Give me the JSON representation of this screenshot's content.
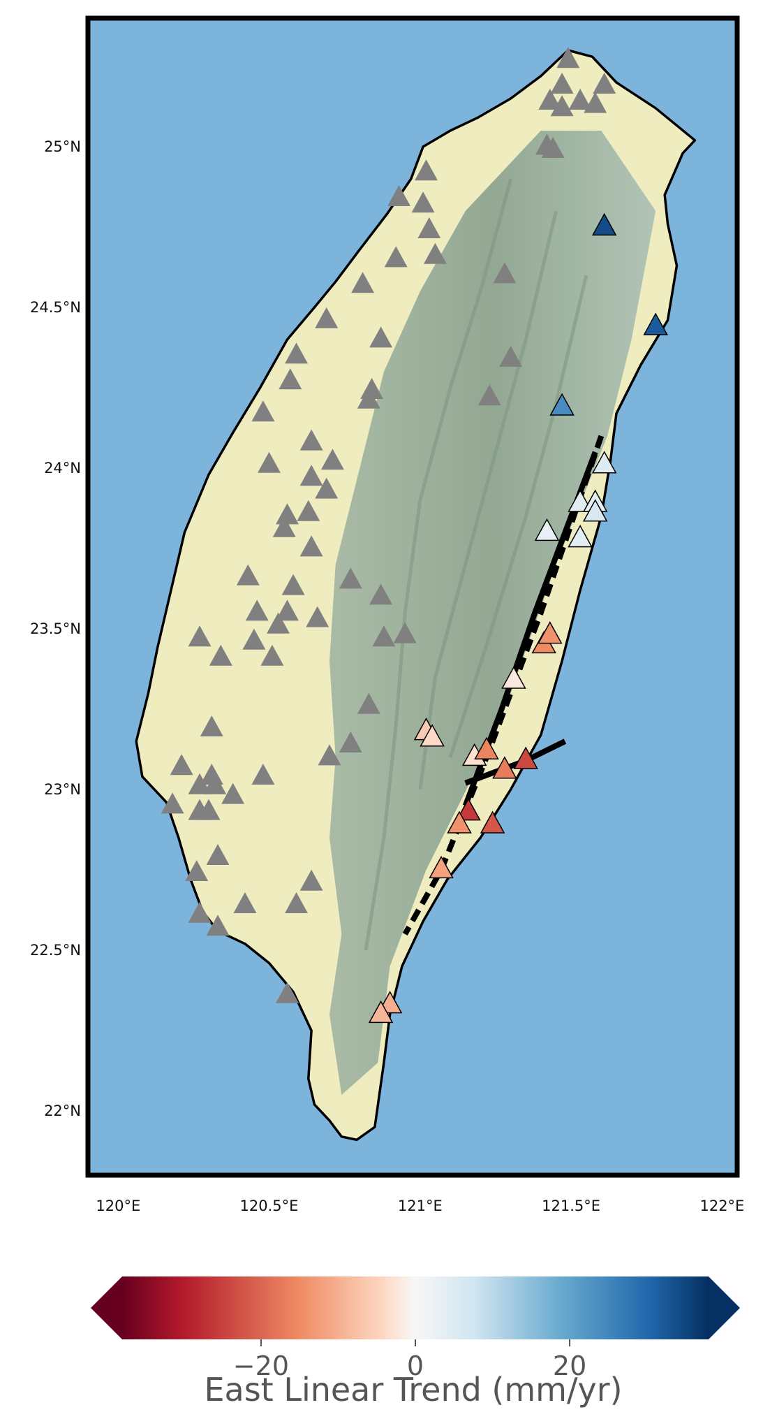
{
  "map": {
    "region": "Taiwan",
    "extent": {
      "lon": [
        119.9,
        122.05
      ],
      "lat": [
        21.8,
        25.4
      ]
    },
    "lon_ticks": [
      {
        "value": 120.0,
        "label": "120°E"
      },
      {
        "value": 120.5,
        "label": "120.5°E"
      },
      {
        "value": 121.0,
        "label": "121°E"
      },
      {
        "value": 121.5,
        "label": "121.5°E"
      },
      {
        "value": 122.0,
        "label": "122°E"
      }
    ],
    "lat_ticks": [
      {
        "value": 22.0,
        "label": "22°N"
      },
      {
        "value": 22.5,
        "label": "22.5°N"
      },
      {
        "value": 23.0,
        "label": "23°N"
      },
      {
        "value": 23.5,
        "label": "23.5°N"
      },
      {
        "value": 24.0,
        "label": "24°N"
      },
      {
        "value": 24.5,
        "label": "24.5°N"
      },
      {
        "value": 25.0,
        "label": "25°N"
      }
    ],
    "colors": {
      "sea": "#7db4dc",
      "lowland": "#efecc0",
      "mountain": "#a9bba6",
      "ridge": "#7e9482",
      "coast": "#000000",
      "no_data_station": "#808080"
    },
    "coastline": [
      [
        121.49,
        25.3
      ],
      [
        121.57,
        25.28
      ],
      [
        121.65,
        25.2
      ],
      [
        121.78,
        25.12
      ],
      [
        121.91,
        25.02
      ],
      [
        121.87,
        24.98
      ],
      [
        121.81,
        24.85
      ],
      [
        121.82,
        24.76
      ],
      [
        121.85,
        24.63
      ],
      [
        121.82,
        24.46
      ],
      [
        121.73,
        24.32
      ],
      [
        121.65,
        24.17
      ],
      [
        121.63,
        24.02
      ],
      [
        121.6,
        23.85
      ],
      [
        121.53,
        23.62
      ],
      [
        121.47,
        23.4
      ],
      [
        121.4,
        23.17
      ],
      [
        121.3,
        23.0
      ],
      [
        121.2,
        22.85
      ],
      [
        121.09,
        22.72
      ],
      [
        121.01,
        22.59
      ],
      [
        120.94,
        22.45
      ],
      [
        120.9,
        22.3
      ],
      [
        120.88,
        22.15
      ],
      [
        120.85,
        21.95
      ],
      [
        120.79,
        21.91
      ],
      [
        120.74,
        21.92
      ],
      [
        120.7,
        21.97
      ],
      [
        120.65,
        22.02
      ],
      [
        120.63,
        22.1
      ],
      [
        120.64,
        22.25
      ],
      [
        120.58,
        22.37
      ],
      [
        120.5,
        22.46
      ],
      [
        120.42,
        22.52
      ],
      [
        120.33,
        22.56
      ],
      [
        120.28,
        22.62
      ],
      [
        120.24,
        22.72
      ],
      [
        120.2,
        22.85
      ],
      [
        120.16,
        22.96
      ],
      [
        120.08,
        23.04
      ],
      [
        120.06,
        23.15
      ],
      [
        120.1,
        23.3
      ],
      [
        120.13,
        23.44
      ],
      [
        120.17,
        23.6
      ],
      [
        120.22,
        23.8
      ],
      [
        120.3,
        23.98
      ],
      [
        120.38,
        24.11
      ],
      [
        120.47,
        24.25
      ],
      [
        120.56,
        24.4
      ],
      [
        120.65,
        24.5
      ],
      [
        120.72,
        24.58
      ],
      [
        120.8,
        24.68
      ],
      [
        120.89,
        24.79
      ],
      [
        120.97,
        24.9
      ],
      [
        121.01,
        25.0
      ],
      [
        121.1,
        25.05
      ],
      [
        121.19,
        25.09
      ],
      [
        121.3,
        25.15
      ],
      [
        121.4,
        25.22
      ],
      [
        121.49,
        25.3
      ]
    ],
    "faults": [
      {
        "style": "dashed",
        "points": [
          [
            121.6,
            24.1
          ],
          [
            121.4,
            23.55
          ],
          [
            121.22,
            23.1
          ],
          [
            121.07,
            22.75
          ],
          [
            120.95,
            22.55
          ]
        ]
      },
      {
        "style": "solid",
        "points": [
          [
            121.58,
            24.05
          ],
          [
            121.38,
            23.55
          ],
          [
            121.27,
            23.25
          ],
          [
            121.15,
            22.95
          ]
        ]
      },
      {
        "style": "solid",
        "points": [
          [
            121.15,
            23.02
          ],
          [
            121.35,
            23.09
          ],
          [
            121.48,
            23.15
          ]
        ]
      }
    ],
    "stations_no_data": [
      [
        121.49,
        25.27
      ],
      [
        121.47,
        25.19
      ],
      [
        121.61,
        25.19
      ],
      [
        121.43,
        25.14
      ],
      [
        121.53,
        25.14
      ],
      [
        121.58,
        25.13
      ],
      [
        121.47,
        25.12
      ],
      [
        121.42,
        25.0
      ],
      [
        121.44,
        24.99
      ],
      [
        121.02,
        24.92
      ],
      [
        120.93,
        24.84
      ],
      [
        121.01,
        24.82
      ],
      [
        121.03,
        24.74
      ],
      [
        121.05,
        24.66
      ],
      [
        120.92,
        24.65
      ],
      [
        121.28,
        24.6
      ],
      [
        120.81,
        24.57
      ],
      [
        120.69,
        24.46
      ],
      [
        120.87,
        24.4
      ],
      [
        120.59,
        24.35
      ],
      [
        121.3,
        24.34
      ],
      [
        120.57,
        24.27
      ],
      [
        120.84,
        24.24
      ],
      [
        120.83,
        24.21
      ],
      [
        121.23,
        24.22
      ],
      [
        120.48,
        24.17
      ],
      [
        120.64,
        24.08
      ],
      [
        120.5,
        24.01
      ],
      [
        120.71,
        24.02
      ],
      [
        120.64,
        23.97
      ],
      [
        120.69,
        23.93
      ],
      [
        120.56,
        23.85
      ],
      [
        120.63,
        23.86
      ],
      [
        120.55,
        23.81
      ],
      [
        120.64,
        23.75
      ],
      [
        120.43,
        23.66
      ],
      [
        120.58,
        23.63
      ],
      [
        120.77,
        23.65
      ],
      [
        120.87,
        23.6
      ],
      [
        120.46,
        23.55
      ],
      [
        120.56,
        23.55
      ],
      [
        120.66,
        23.53
      ],
      [
        120.53,
        23.51
      ],
      [
        120.27,
        23.47
      ],
      [
        120.45,
        23.46
      ],
      [
        120.88,
        23.47
      ],
      [
        120.95,
        23.48
      ],
      [
        120.34,
        23.41
      ],
      [
        120.51,
        23.41
      ],
      [
        120.83,
        23.26
      ],
      [
        120.31,
        23.19
      ],
      [
        120.77,
        23.14
      ],
      [
        120.7,
        23.1
      ],
      [
        120.21,
        23.07
      ],
      [
        120.31,
        23.04
      ],
      [
        120.48,
        23.04
      ],
      [
        120.27,
        23.01
      ],
      [
        120.32,
        23.01
      ],
      [
        120.38,
        22.98
      ],
      [
        120.27,
        22.93
      ],
      [
        120.3,
        22.93
      ],
      [
        120.18,
        22.95
      ],
      [
        120.33,
        22.79
      ],
      [
        120.26,
        22.74
      ],
      [
        120.64,
        22.71
      ],
      [
        120.42,
        22.64
      ],
      [
        120.59,
        22.64
      ],
      [
        120.27,
        22.61
      ],
      [
        120.33,
        22.57
      ],
      [
        120.56,
        22.36
      ]
    ],
    "stations": [
      [
        121.61,
        24.75,
        34
      ],
      [
        121.78,
        24.44,
        32
      ],
      [
        121.47,
        24.19,
        24
      ],
      [
        121.61,
        24.01,
        5
      ],
      [
        121.53,
        23.89,
        4
      ],
      [
        121.58,
        23.89,
        4
      ],
      [
        121.58,
        23.86,
        6
      ],
      [
        121.42,
        23.8,
        3
      ],
      [
        121.53,
        23.78,
        4
      ],
      [
        121.41,
        23.45,
        -15
      ],
      [
        121.43,
        23.48,
        -14
      ],
      [
        121.31,
        23.34,
        -2
      ],
      [
        121.02,
        23.18,
        -6
      ],
      [
        121.04,
        23.16,
        -4
      ],
      [
        121.18,
        23.1,
        -3
      ],
      [
        121.22,
        23.12,
        -16
      ],
      [
        121.28,
        23.06,
        -17
      ],
      [
        121.35,
        23.09,
        -24
      ],
      [
        121.16,
        22.93,
        -26
      ],
      [
        121.13,
        22.89,
        -14
      ],
      [
        121.24,
        22.89,
        -22
      ],
      [
        121.07,
        22.75,
        -12
      ],
      [
        120.9,
        22.33,
        -10
      ],
      [
        120.87,
        22.3,
        -9
      ]
    ]
  },
  "colorbar": {
    "label": "East Linear Trend (mm/yr)",
    "range": [
      -38,
      38
    ],
    "extend": "both",
    "colormap": "RdBu",
    "ticks": [
      {
        "value": -20,
        "label": "−20"
      },
      {
        "value": 0,
        "label": "0"
      },
      {
        "value": 20,
        "label": "20"
      }
    ]
  }
}
